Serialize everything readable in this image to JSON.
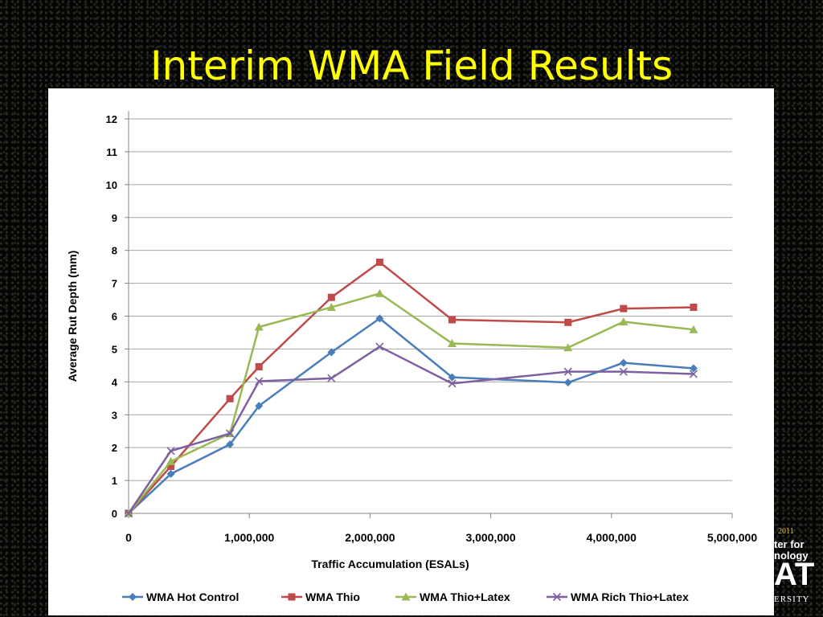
{
  "slide": {
    "title": "Interim WMA Field Results"
  },
  "corner_logo": {
    "year": "2011",
    "line1": "ter for",
    "line2": "nology",
    "mark": "AT",
    "line3": "ERSITY"
  },
  "chart_data": {
    "type": "line",
    "xlabel": "Traffic Accumulation (ESALs)",
    "ylabel": "Average Rut Depth (mm)",
    "xlim": [
      0,
      5000000
    ],
    "ylim": [
      0,
      12
    ],
    "xticks": [
      0,
      1000000,
      2000000,
      3000000,
      4000000,
      5000000
    ],
    "xtick_labels": [
      "0",
      "1,000,000",
      "2,000,000",
      "3,000,000",
      "4,000,000",
      "5,000,000"
    ],
    "yticks": [
      0,
      1,
      2,
      3,
      4,
      5,
      6,
      7,
      8,
      9,
      10,
      11,
      12
    ],
    "grid": "horizontal",
    "legend_position": "bottom",
    "series": [
      {
        "name": "WMA Hot Control",
        "color": "#4a7ebb",
        "marker": "diamond",
        "x": [
          0,
          350000,
          840000,
          1080000,
          1680000,
          2080000,
          2680000,
          3640000,
          4100000,
          4680000
        ],
        "y": [
          0,
          1.2,
          2.1,
          3.27,
          4.9,
          5.93,
          4.14,
          3.98,
          4.58,
          4.41
        ]
      },
      {
        "name": "WMA Thio",
        "color": "#be4b48",
        "marker": "square",
        "x": [
          0,
          350000,
          840000,
          1080000,
          1680000,
          2080000,
          2680000,
          3640000,
          4100000,
          4680000
        ],
        "y": [
          0,
          1.43,
          3.49,
          4.46,
          6.57,
          7.64,
          5.89,
          5.81,
          6.23,
          6.27
        ]
      },
      {
        "name": "WMA Thio+Latex",
        "color": "#98b954",
        "marker": "triangle",
        "x": [
          0,
          350000,
          840000,
          1080000,
          1680000,
          2080000,
          2680000,
          3640000,
          4100000,
          4680000
        ],
        "y": [
          0,
          1.58,
          2.43,
          5.67,
          6.27,
          6.69,
          5.17,
          5.04,
          5.83,
          5.59
        ]
      },
      {
        "name": "WMA Rich Thio+Latex",
        "color": "#7d60a0",
        "marker": "x",
        "x": [
          0,
          350000,
          840000,
          1080000,
          1680000,
          2080000,
          2680000,
          3640000,
          4100000,
          4680000
        ],
        "y": [
          0,
          1.9,
          2.43,
          4.02,
          4.11,
          5.07,
          3.95,
          4.31,
          4.31,
          4.24
        ]
      }
    ]
  }
}
